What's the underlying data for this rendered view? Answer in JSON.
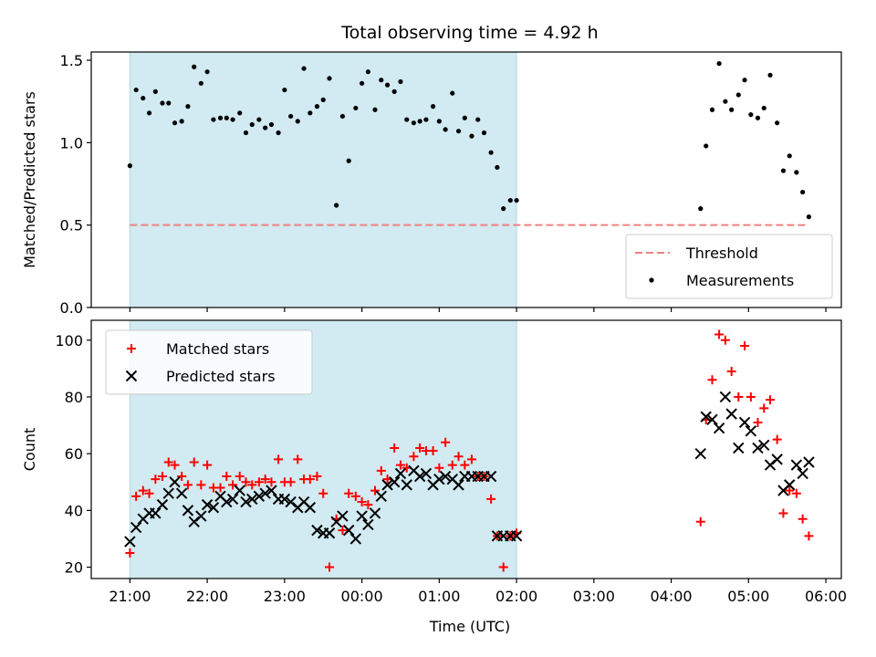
{
  "chart_data": {
    "type": "scatter",
    "title": "Total observing time = 4.92 h",
    "xlabel": "Time (UTC)",
    "x_ticks": [
      "21:00",
      "22:00",
      "23:00",
      "00:00",
      "01:00",
      "02:00",
      "03:00",
      "04:00",
      "05:00",
      "06:00"
    ],
    "x_range_hours": [
      20.5,
      30.2
    ],
    "shaded_interval_hours": [
      21.0,
      26.0
    ],
    "shade_color": "#add8e6",
    "panels": [
      {
        "id": "ratio",
        "ylabel": "Matched/Predicted stars",
        "ylim": [
          0,
          1.55
        ],
        "y_ticks": [
          "0.0",
          "0.5",
          "1.0",
          "1.5"
        ],
        "legend_position": "bottom-right",
        "threshold": {
          "name": "Threshold",
          "value": 0.5,
          "x_range_hours": [
            21.0,
            29.75
          ],
          "color": "#f08080"
        },
        "series": [
          {
            "name": "Measurements",
            "color": "#000000",
            "marker": "dot",
            "x": [
              21.0,
              21.08,
              21.17,
              21.25,
              21.33,
              21.42,
              21.5,
              21.58,
              21.67,
              21.75,
              21.83,
              21.92,
              22.0,
              22.08,
              22.17,
              22.25,
              22.33,
              22.42,
              22.5,
              22.58,
              22.67,
              22.75,
              22.83,
              22.92,
              23.0,
              23.08,
              23.17,
              23.25,
              23.33,
              23.42,
              23.5,
              23.58,
              23.67,
              23.75,
              23.83,
              23.92,
              24.0,
              24.08,
              24.17,
              24.25,
              24.33,
              24.42,
              24.5,
              24.58,
              24.67,
              24.75,
              24.83,
              24.92,
              25.0,
              25.08,
              25.17,
              25.25,
              25.33,
              25.42,
              25.5,
              25.58,
              25.67,
              25.75,
              25.83,
              25.92,
              26.0,
              28.38,
              28.45,
              28.53,
              28.62,
              28.7,
              28.78,
              28.87,
              28.95,
              29.03,
              29.12,
              29.2,
              29.28,
              29.37,
              29.45,
              29.53,
              29.62,
              29.7,
              29.78
            ],
            "y": [
              0.86,
              1.32,
              1.27,
              1.18,
              1.31,
              1.24,
              1.24,
              1.12,
              1.13,
              1.22,
              1.46,
              1.36,
              1.43,
              1.14,
              1.15,
              1.15,
              1.14,
              1.18,
              1.06,
              1.11,
              1.14,
              1.09,
              1.11,
              1.06,
              1.32,
              1.16,
              1.13,
              1.45,
              1.18,
              1.22,
              1.26,
              1.39,
              0.62,
              1.16,
              0.89,
              1.21,
              1.36,
              1.43,
              1.2,
              1.38,
              1.35,
              1.31,
              1.37,
              1.14,
              1.12,
              1.13,
              1.14,
              1.22,
              1.13,
              1.08,
              1.3,
              1.07,
              1.15,
              1.04,
              1.14,
              1.06,
              0.94,
              0.85,
              0.6,
              0.65,
              0.65,
              0.6,
              0.98,
              1.2,
              1.48,
              1.25,
              1.2,
              1.29,
              1.38,
              1.17,
              1.15,
              1.21,
              1.41,
              1.12,
              0.83,
              0.92,
              0.82,
              0.7,
              0.55
            ]
          }
        ]
      },
      {
        "id": "count",
        "ylabel": "Count",
        "ylim": [
          16,
          107
        ],
        "y_ticks": [
          "20",
          "40",
          "60",
          "80",
          "100"
        ],
        "legend_position": "top-left",
        "series": [
          {
            "name": "Matched stars",
            "color": "#ff0000",
            "marker": "plus",
            "x": [
              21.0,
              21.08,
              21.17,
              21.25,
              21.33,
              21.42,
              21.5,
              21.58,
              21.67,
              21.75,
              21.83,
              21.92,
              22.0,
              22.08,
              22.17,
              22.25,
              22.33,
              22.42,
              22.5,
              22.58,
              22.67,
              22.75,
              22.83,
              22.92,
              23.0,
              23.08,
              23.17,
              23.25,
              23.33,
              23.42,
              23.5,
              23.58,
              23.67,
              23.75,
              23.83,
              23.92,
              24.0,
              24.08,
              24.17,
              24.25,
              24.33,
              24.42,
              24.5,
              24.58,
              24.67,
              24.75,
              24.83,
              24.92,
              25.0,
              25.08,
              25.17,
              25.25,
              25.33,
              25.42,
              25.5,
              25.58,
              25.67,
              25.75,
              25.83,
              25.92,
              26.0,
              28.38,
              28.45,
              28.53,
              28.62,
              28.7,
              28.78,
              28.87,
              28.95,
              29.03,
              29.12,
              29.2,
              29.28,
              29.37,
              29.45,
              29.53,
              29.62,
              29.7,
              29.78
            ],
            "y": [
              25,
              45,
              47,
              46,
              51,
              52,
              57,
              56,
              52,
              49,
              57,
              49,
              56,
              48,
              48,
              52,
              49,
              52,
              50,
              49,
              50,
              51,
              50,
              58,
              50,
              50,
              58,
              51,
              51,
              52,
              46,
              20,
              37,
              33,
              46,
              45,
              43,
              42,
              47,
              54,
              51,
              62,
              56,
              55,
              59,
              62,
              61,
              61,
              55,
              64,
              56,
              59,
              56,
              58,
              52,
              52,
              44,
              31,
              20,
              31,
              32,
              36,
              72,
              86,
              102,
              100,
              89,
              80,
              98,
              80,
              71,
              76,
              79,
              65,
              39,
              47,
              46,
              37,
              31
            ]
          },
          {
            "name": "Predicted stars",
            "color": "#000000",
            "marker": "x",
            "x": [
              21.0,
              21.08,
              21.17,
              21.25,
              21.33,
              21.42,
              21.5,
              21.58,
              21.67,
              21.75,
              21.83,
              21.92,
              22.0,
              22.08,
              22.17,
              22.25,
              22.33,
              22.42,
              22.5,
              22.58,
              22.67,
              22.75,
              22.83,
              22.92,
              23.0,
              23.08,
              23.17,
              23.25,
              23.33,
              23.42,
              23.5,
              23.58,
              23.67,
              23.75,
              23.83,
              23.92,
              24.0,
              24.08,
              24.17,
              24.25,
              24.33,
              24.42,
              24.5,
              24.58,
              24.67,
              24.75,
              24.83,
              24.92,
              25.0,
              25.08,
              25.17,
              25.25,
              25.33,
              25.42,
              25.5,
              25.58,
              25.67,
              25.75,
              25.83,
              25.92,
              26.0,
              28.38,
              28.45,
              28.53,
              28.62,
              28.7,
              28.78,
              28.87,
              28.95,
              29.03,
              29.12,
              29.2,
              29.28,
              29.37,
              29.45,
              29.53,
              29.62,
              29.7,
              29.78
            ],
            "y": [
              29,
              34,
              37,
              39,
              39,
              42,
              46,
              50,
              46,
              40,
              36,
              38,
              42,
              41,
              45,
              43,
              44,
              47,
              43,
              44,
              45,
              46,
              47,
              44,
              44,
              43,
              41,
              43,
              41,
              33,
              32,
              32,
              36,
              38,
              33,
              30,
              38,
              35,
              39,
              45,
              49,
              50,
              53,
              49,
              54,
              52,
              53,
              49,
              51,
              52,
              51,
              49,
              52,
              52,
              52,
              52,
              52,
              31,
              31,
              31,
              31,
              60,
              73,
              72,
              69,
              80,
              74,
              62,
              71,
              68,
              62,
              63,
              56,
              58,
              47,
              49,
              56,
              53,
              57
            ]
          }
        ]
      }
    ]
  }
}
